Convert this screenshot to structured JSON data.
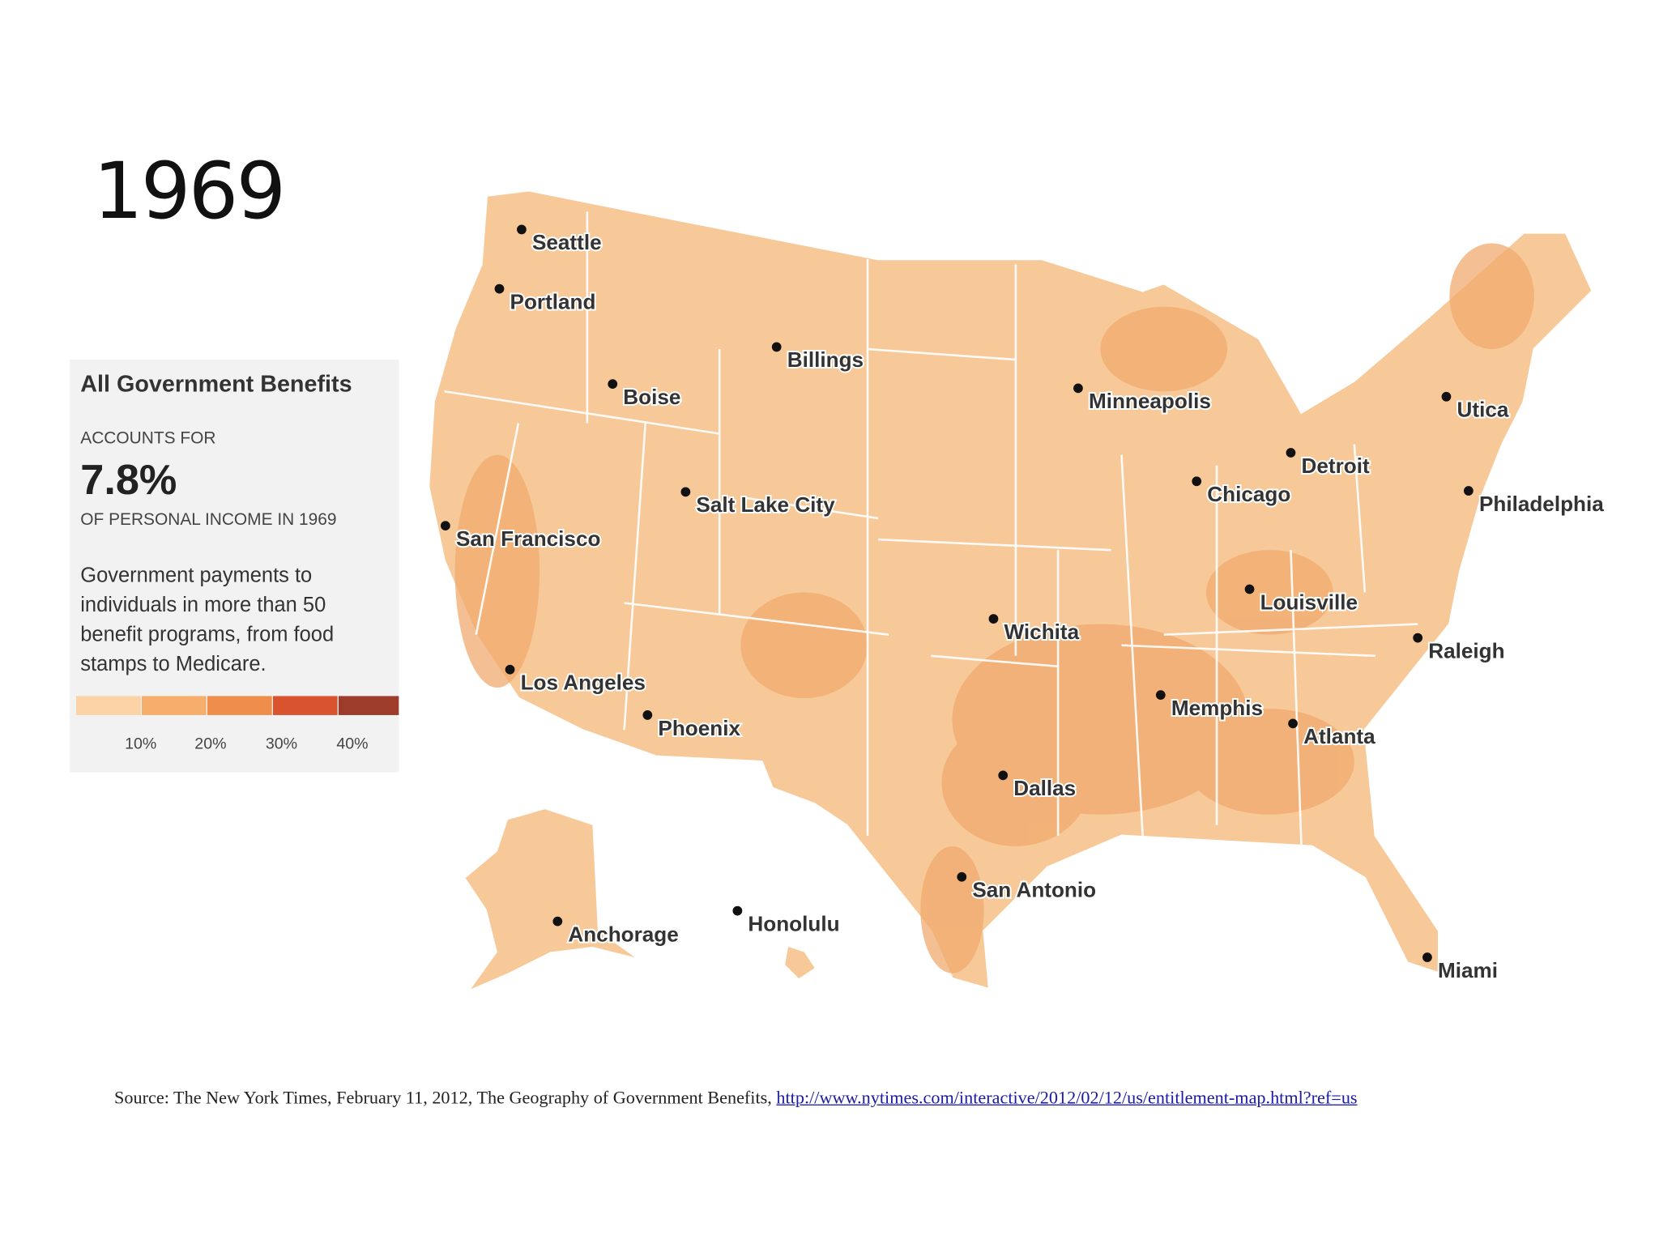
{
  "title": "1969",
  "panel": {
    "heading": "All Government Benefits",
    "accounts_for": "ACCOUNTS FOR",
    "share": "7.8%",
    "share_note": "OF PERSONAL INCOME IN 1969",
    "description": "Government payments to individuals in more than 50 benefit programs, from food stamps to Medicare.",
    "scale_labels": [
      "10%",
      "20%",
      "30%",
      "40%"
    ]
  },
  "cities": [
    "Seattle",
    "Portland",
    "Billings",
    "Boise",
    "Minneapolis",
    "Utica",
    "Detroit",
    "Chicago",
    "Philadelphia",
    "Salt Lake City",
    "San Francisco",
    "Louisville",
    "Wichita",
    "Raleigh",
    "Los Angeles",
    "Memphis",
    "Phoenix",
    "Atlanta",
    "Dallas",
    "San Antonio",
    "Anchorage",
    "Honolulu",
    "Miami"
  ],
  "source": {
    "text": "Source: The New York Times, February 11, 2012, The Geography of Government Benefits,",
    "link": "http://www.nytimes.com/interactive/2012/02/12/us/entitlement-map.html?ref=us"
  }
}
